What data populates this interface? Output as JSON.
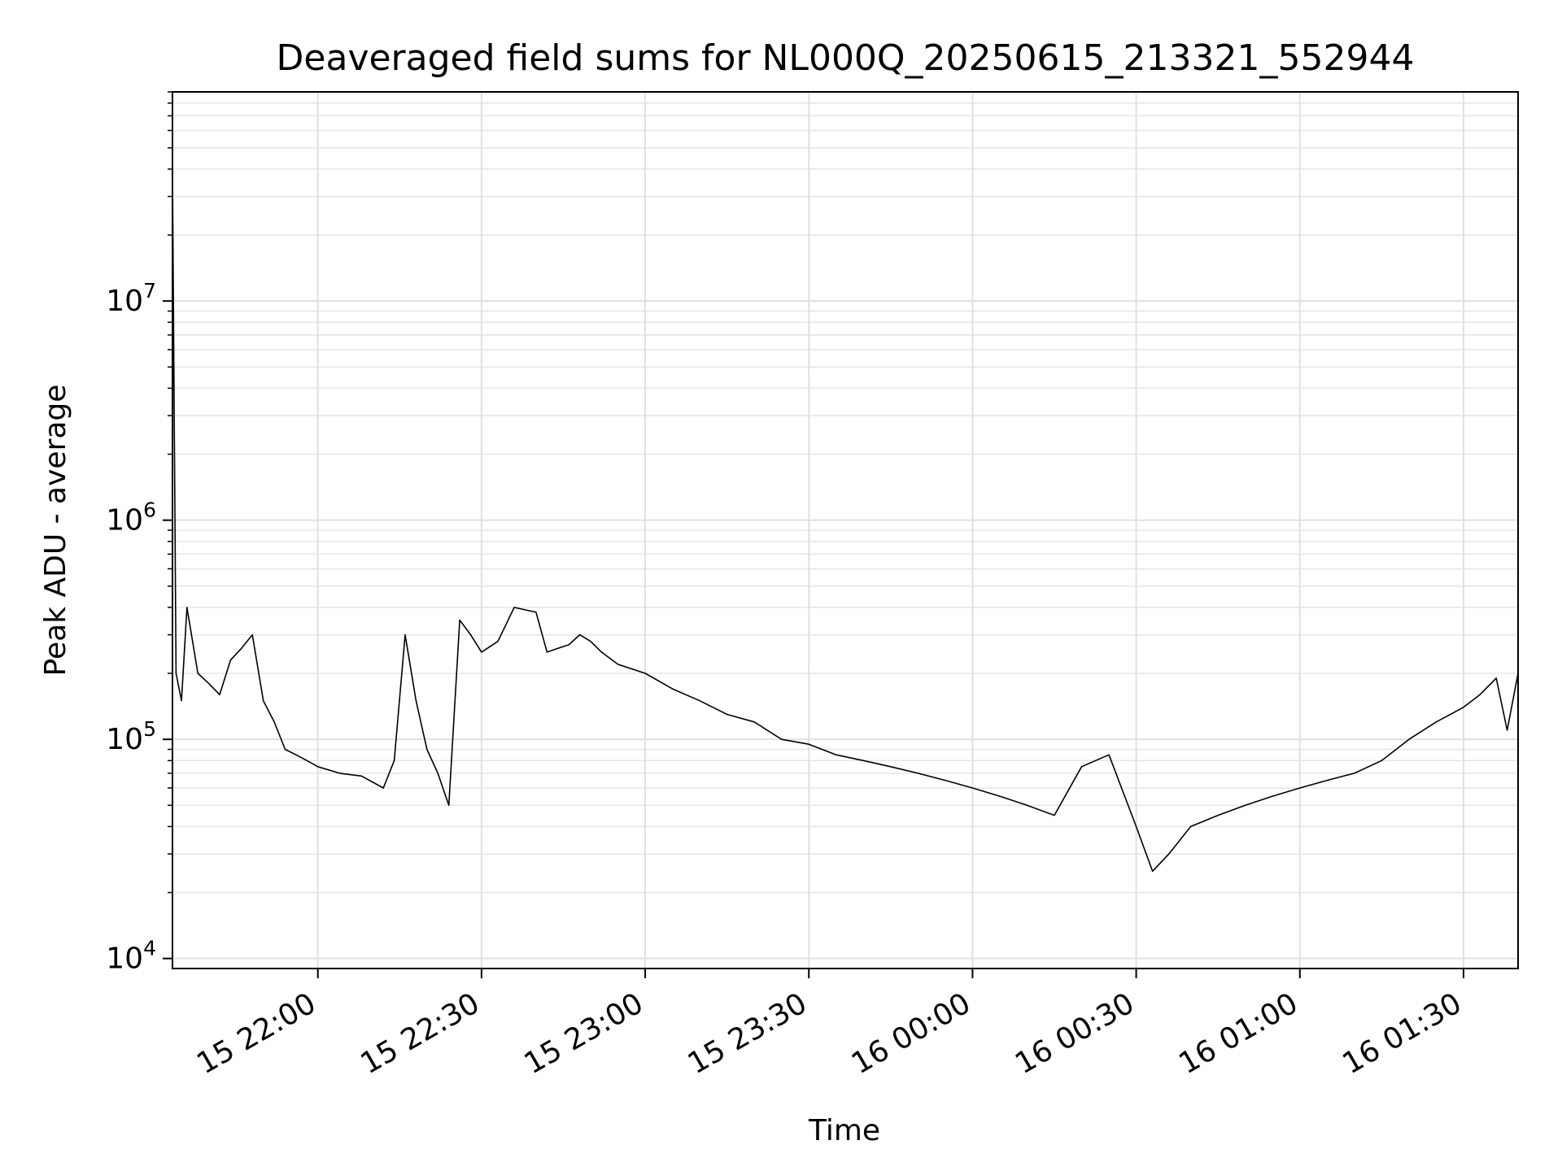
{
  "chart_data": {
    "type": "line",
    "title": "Deaveraged field sums for NL000Q_20250615_213321_552944",
    "xlabel": "Time",
    "ylabel": "Peak ADU - average",
    "yscale": "log",
    "ylim": [
      9000,
      90000000
    ],
    "xlim": [
      "2025-06-15 21:33:21",
      "2025-06-16 01:40:00"
    ],
    "grid": true,
    "line_color": "#000000",
    "x_ticks": [
      {
        "label": "15 22:00",
        "time": "2025-06-15 22:00"
      },
      {
        "label": "15 22:30",
        "time": "2025-06-15 22:30"
      },
      {
        "label": "15 23:00",
        "time": "2025-06-15 23:00"
      },
      {
        "label": "15 23:30",
        "time": "2025-06-15 23:30"
      },
      {
        "label": "16 00:00",
        "time": "2025-06-16 00:00"
      },
      {
        "label": "16 00:30",
        "time": "2025-06-16 00:30"
      },
      {
        "label": "16 01:00",
        "time": "2025-06-16 01:00"
      },
      {
        "label": "16 01:30",
        "time": "2025-06-16 01:30"
      }
    ],
    "y_ticks": [
      {
        "base": "10",
        "exp": "4",
        "value": 10000
      },
      {
        "base": "10",
        "exp": "5",
        "value": 100000
      },
      {
        "base": "10",
        "exp": "6",
        "value": 1000000
      },
      {
        "base": "10",
        "exp": "7",
        "value": 10000000
      }
    ],
    "series": [
      {
        "x": [
          "2025-06-15 21:33:21",
          "2025-06-15 21:34:00",
          "2025-06-15 21:35:00",
          "2025-06-15 21:36:00",
          "2025-06-15 21:38:00",
          "2025-06-15 21:40:00",
          "2025-06-15 21:42:00",
          "2025-06-15 21:44:00",
          "2025-06-15 21:46:00",
          "2025-06-15 21:48:00",
          "2025-06-15 21:50:00",
          "2025-06-15 21:52:00",
          "2025-06-15 21:54:00",
          "2025-06-15 21:56:00",
          "2025-06-15 21:58:00",
          "2025-06-15 22:00:00",
          "2025-06-15 22:04:00",
          "2025-06-15 22:08:00",
          "2025-06-15 22:12:00",
          "2025-06-15 22:14:00",
          "2025-06-15 22:16:00",
          "2025-06-15 22:18:00",
          "2025-06-15 22:20:00",
          "2025-06-15 22:22:00",
          "2025-06-15 22:24:00",
          "2025-06-15 22:26:00",
          "2025-06-15 22:28:00",
          "2025-06-15 22:30:00",
          "2025-06-15 22:33:00",
          "2025-06-15 22:36:00",
          "2025-06-15 22:40:00",
          "2025-06-15 22:42:00",
          "2025-06-15 22:44:00",
          "2025-06-15 22:46:00",
          "2025-06-15 22:48:00",
          "2025-06-15 22:50:00",
          "2025-06-15 22:52:00",
          "2025-06-15 22:55:00",
          "2025-06-15 23:00:00",
          "2025-06-15 23:05:00",
          "2025-06-15 23:10:00",
          "2025-06-15 23:15:00",
          "2025-06-15 23:20:00",
          "2025-06-15 23:25:00",
          "2025-06-15 23:30:00",
          "2025-06-15 23:35:00",
          "2025-06-15 23:40:00",
          "2025-06-15 23:45:00",
          "2025-06-15 23:50:00",
          "2025-06-15 23:55:00",
          "2025-06-16 00:00:00",
          "2025-06-16 00:05:00",
          "2025-06-16 00:10:00",
          "2025-06-16 00:15:00",
          "2025-06-16 00:20:00",
          "2025-06-16 00:25:00",
          "2025-06-16 00:30:00",
          "2025-06-16 00:33:00",
          "2025-06-16 00:36:00",
          "2025-06-16 00:40:00",
          "2025-06-16 00:45:00",
          "2025-06-16 00:50:00",
          "2025-06-16 00:55:00",
          "2025-06-16 01:00:00",
          "2025-06-16 01:05:00",
          "2025-06-16 01:10:00",
          "2025-06-16 01:15:00",
          "2025-06-16 01:20:00",
          "2025-06-16 01:25:00",
          "2025-06-16 01:30:00",
          "2025-06-16 01:33:00",
          "2025-06-16 01:36:00",
          "2025-06-16 01:38:00",
          "2025-06-16 01:40:00"
        ],
        "y": [
          40000000,
          200000,
          150000,
          400000,
          200000,
          180000,
          160000,
          230000,
          260000,
          300000,
          150000,
          120000,
          90000,
          85000,
          80000,
          75000,
          70000,
          68000,
          60000,
          80000,
          300000,
          150000,
          90000,
          70000,
          50000,
          350000,
          300000,
          250000,
          280000,
          400000,
          380000,
          250000,
          260000,
          270000,
          300000,
          280000,
          250000,
          220000,
          200000,
          170000,
          150000,
          130000,
          120000,
          100000,
          95000,
          85000,
          80000,
          75000,
          70000,
          65000,
          60000,
          55000,
          50000,
          45000,
          75000,
          85000,
          40000,
          25000,
          30000,
          40000,
          45000,
          50000,
          55000,
          60000,
          65000,
          70000,
          80000,
          100000,
          120000,
          140000,
          160000,
          190000,
          110000,
          200000
        ]
      }
    ]
  }
}
